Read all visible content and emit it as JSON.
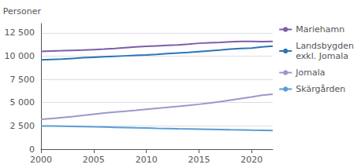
{
  "chart_data": {
    "type": "line",
    "ylabel": "Personer",
    "x": [
      2000,
      2001,
      2002,
      2003,
      2004,
      2005,
      2006,
      2007,
      2008,
      2009,
      2010,
      2011,
      2012,
      2013,
      2014,
      2015,
      2016,
      2017,
      2018,
      2019,
      2020,
      2021,
      2022
    ],
    "series": [
      {
        "name": "Mariehamn",
        "color": "#7B5EA7",
        "values": [
          10500,
          10550,
          10580,
          10620,
          10650,
          10700,
          10750,
          10820,
          10900,
          10980,
          11050,
          11100,
          11150,
          11200,
          11280,
          11380,
          11430,
          11480,
          11540,
          11580,
          11580,
          11560,
          11580
        ]
      },
      {
        "name": "Landsbygden\nexkl. Jomala",
        "color": "#2E74B5",
        "values": [
          9600,
          9640,
          9680,
          9750,
          9820,
          9880,
          9930,
          9980,
          10030,
          10080,
          10130,
          10190,
          10270,
          10330,
          10390,
          10480,
          10570,
          10660,
          10760,
          10820,
          10870,
          10980,
          11080
        ]
      },
      {
        "name": "Jomala",
        "color": "#9999CC",
        "values": [
          3200,
          3300,
          3400,
          3500,
          3620,
          3750,
          3880,
          3980,
          4080,
          4180,
          4290,
          4390,
          4490,
          4590,
          4700,
          4820,
          4960,
          5100,
          5280,
          5450,
          5620,
          5800,
          5900
        ]
      },
      {
        "name": "Skärgården",
        "color": "#5B9BD5",
        "values": [
          2480,
          2490,
          2470,
          2450,
          2430,
          2400,
          2380,
          2350,
          2320,
          2290,
          2270,
          2240,
          2220,
          2190,
          2180,
          2160,
          2140,
          2110,
          2080,
          2060,
          2040,
          2030,
          2010
        ]
      }
    ],
    "xlim": [
      2000,
      2022
    ],
    "xticks": [
      2000,
      2005,
      2010,
      2015,
      2020
    ],
    "ylim": [
      0,
      13500
    ],
    "yticks": [
      0,
      {
        "value": 2500,
        "label": "2 500"
      },
      {
        "value": 5000,
        "label": "5 000"
      },
      {
        "value": 7500,
        "label": "7 500"
      },
      {
        "value": 10000,
        "label": "10 000"
      },
      {
        "value": 12500,
        "label": "12 500"
      }
    ],
    "grid": "y",
    "legend": "right"
  }
}
